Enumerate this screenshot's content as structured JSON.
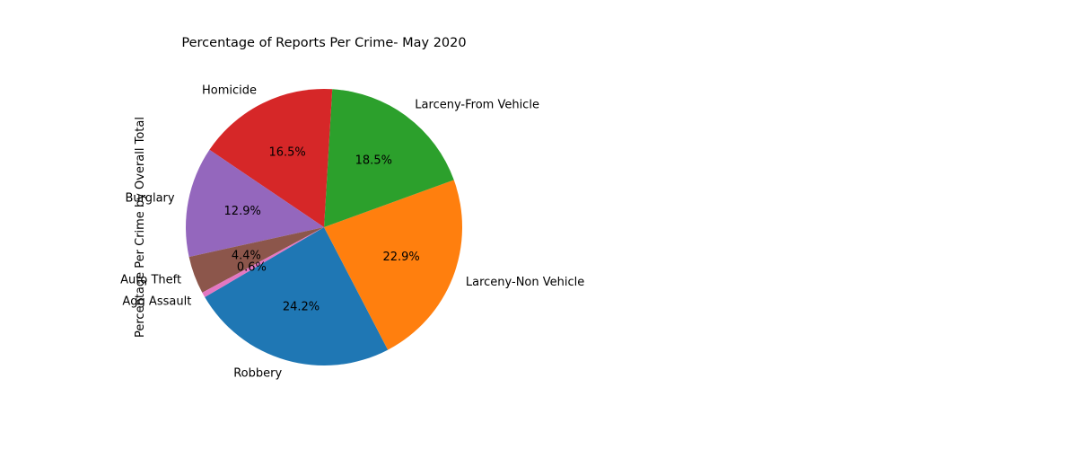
{
  "chart_data": {
    "type": "pie",
    "title": "Percentage of Reports Per Crime- May 2020",
    "ylabel": "Percentage Per Crime by Overall Total",
    "slices": [
      {
        "label": "Robbery",
        "value": 24.2,
        "pct_label": "24.2%",
        "color": "#1f77b4"
      },
      {
        "label": "Larceny-Non Vehicle",
        "value": 22.9,
        "pct_label": "22.9%",
        "color": "#ff7f0e"
      },
      {
        "label": "Larceny-From Vehicle",
        "value": 18.5,
        "pct_label": "18.5%",
        "color": "#2ca02c"
      },
      {
        "label": "Homicide",
        "value": 16.5,
        "pct_label": "16.5%",
        "color": "#d62728"
      },
      {
        "label": "Burglary",
        "value": 12.9,
        "pct_label": "12.9%",
        "color": "#9467bd"
      },
      {
        "label": "Auto Theft",
        "value": 4.4,
        "pct_label": "4.4%",
        "color": "#8c564b"
      },
      {
        "label": "Agg Assault",
        "value": 0.6,
        "pct_label": "0.6%",
        "color": "#e377c2"
      }
    ]
  }
}
